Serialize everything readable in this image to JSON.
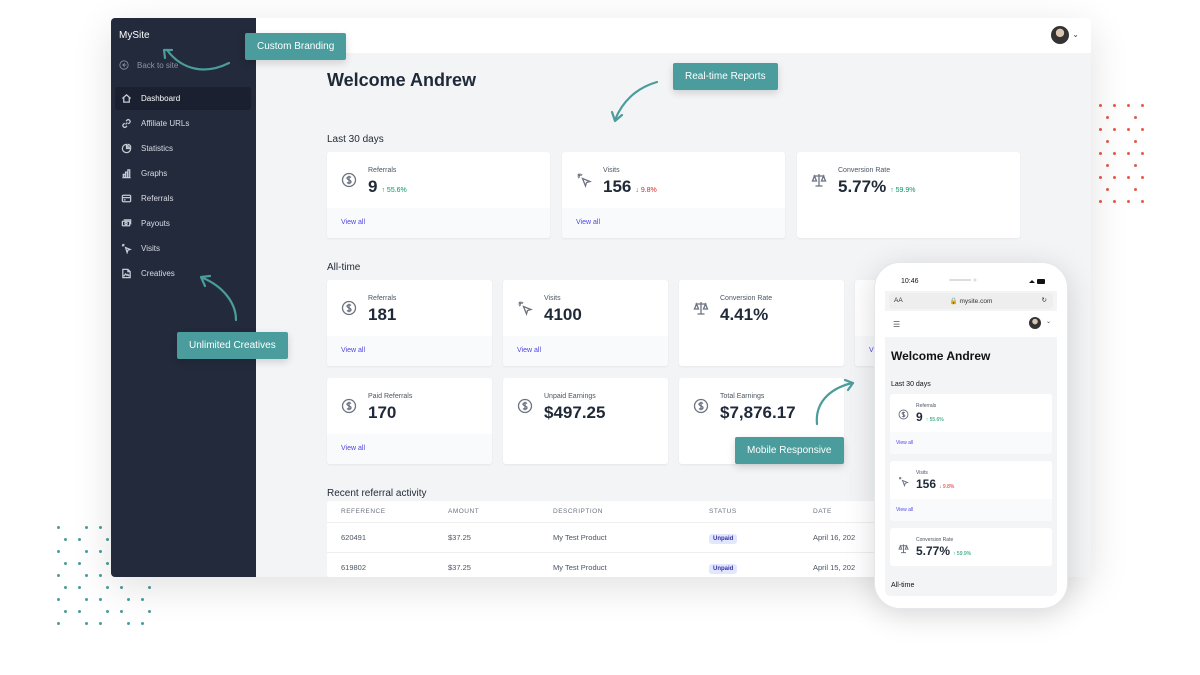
{
  "sidebar": {
    "brand": "MySite",
    "back_label": "Back to site",
    "items": [
      {
        "label": "Dashboard",
        "icon": "home-icon"
      },
      {
        "label": "Affiliate URLs",
        "icon": "link-icon"
      },
      {
        "label": "Statistics",
        "icon": "pie-chart-icon"
      },
      {
        "label": "Graphs",
        "icon": "bar-chart-icon"
      },
      {
        "label": "Referrals",
        "icon": "card-icon"
      },
      {
        "label": "Payouts",
        "icon": "cash-icon"
      },
      {
        "label": "Visits",
        "icon": "cursor-click-icon"
      },
      {
        "label": "Creatives",
        "icon": "image-icon"
      }
    ]
  },
  "main": {
    "welcome": "Welcome Andrew",
    "last30_title": "Last 30 days",
    "alltime_title": "All-time",
    "recent_title": "Recent referral activity",
    "view_all": "View all",
    "last30": [
      {
        "label": "Referrals",
        "value": "9",
        "delta": "55.6%",
        "dir": "up"
      },
      {
        "label": "Visits",
        "value": "156",
        "delta": "9.8%",
        "dir": "down"
      },
      {
        "label": "Conversion Rate",
        "value": "5.77%",
        "delta": "59.9%",
        "dir": "up"
      }
    ],
    "alltime": [
      {
        "label": "Referrals",
        "value": "181"
      },
      {
        "label": "Visits",
        "value": "4100"
      },
      {
        "label": "Conversion Rate",
        "value": "4.41%"
      },
      {
        "label": "Paid Referrals",
        "value": "170"
      },
      {
        "label": "Unpaid Earnings",
        "value": "$497.25"
      },
      {
        "label": "Total Earnings",
        "value": "$7,876.17"
      }
    ],
    "table": {
      "headers": [
        "REFERENCE",
        "AMOUNT",
        "DESCRIPTION",
        "STATUS",
        "DATE"
      ],
      "rows": [
        [
          "620491",
          "$37.25",
          "My Test Product",
          "Unpaid",
          "April 16, 202"
        ],
        [
          "619802",
          "$37.25",
          "My Test Product",
          "Unpaid",
          "April 15, 202"
        ]
      ]
    }
  },
  "callouts": {
    "branding": "Custom Branding",
    "reports": "Real-time Reports",
    "creatives": "Unlimited Creatives",
    "mobile": "Mobile Responsive"
  },
  "phone": {
    "time": "10:46",
    "aa": "AA",
    "url": "mysite.com",
    "welcome": "Welcome Andrew",
    "last30_title": "Last 30 days",
    "alltime_title": "All-time",
    "view_all": "View all",
    "cards": [
      {
        "label": "Referrals",
        "value": "9",
        "delta": "55.6%",
        "dir": "up"
      },
      {
        "label": "Visits",
        "value": "156",
        "delta": "9.8%",
        "dir": "down"
      },
      {
        "label": "Conversion Rate",
        "value": "5.77%",
        "delta": "59.9%",
        "dir": "up"
      }
    ]
  },
  "colors": {
    "sidebar": "#232a3b",
    "accent_teal": "#4a9d9c",
    "link": "#4f46e5",
    "up": "#059669",
    "down": "#dc2626"
  }
}
